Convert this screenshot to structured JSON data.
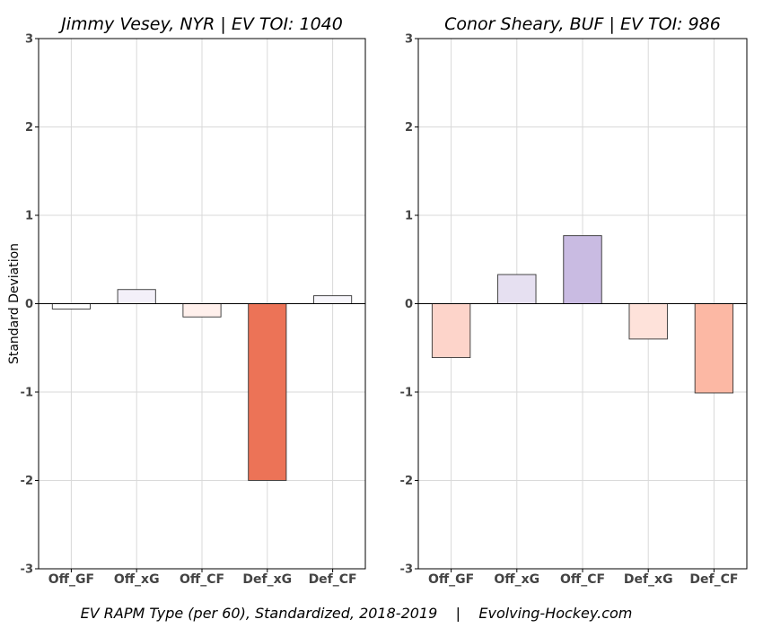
{
  "chart_data": [
    {
      "type": "bar",
      "title": "Jimmy Vesey, NYR  |  EV TOI: 1040",
      "ylabel": "Standard Deviation",
      "categories": [
        "Off_GF",
        "Off_xG",
        "Off_CF",
        "Def_xG",
        "Def_CF"
      ],
      "values": [
        -0.06,
        0.16,
        -0.15,
        -2.0,
        0.09
      ],
      "colors": [
        "#ffffff",
        "#f3f0f9",
        "#fff0ec",
        "#ec7357",
        "#f7f6fb"
      ],
      "ylim": [
        -3,
        3
      ],
      "yticks": [
        "-3",
        "-2",
        "-1",
        "0",
        "1",
        "2",
        "3"
      ],
      "grid": true
    },
    {
      "type": "bar",
      "title": "Conor Sheary, BUF  |  EV TOI: 986",
      "ylabel": "",
      "categories": [
        "Off_GF",
        "Off_xG",
        "Off_CF",
        "Def_xG",
        "Def_CF"
      ],
      "values": [
        -0.61,
        0.33,
        0.77,
        -0.4,
        -1.01
      ],
      "colors": [
        "#fdd4ca",
        "#e6e0f1",
        "#c9bbe2",
        "#fee2da",
        "#fcb8a4"
      ],
      "ylim": [
        -3,
        3
      ],
      "yticks": [
        "-3",
        "-2",
        "-1",
        "0",
        "1",
        "2",
        "3"
      ],
      "grid": true
    }
  ],
  "footer": {
    "caption": "EV RAPM Type (per 60), Standardized, 2018-2019    |    Evolving-Hockey.com"
  }
}
